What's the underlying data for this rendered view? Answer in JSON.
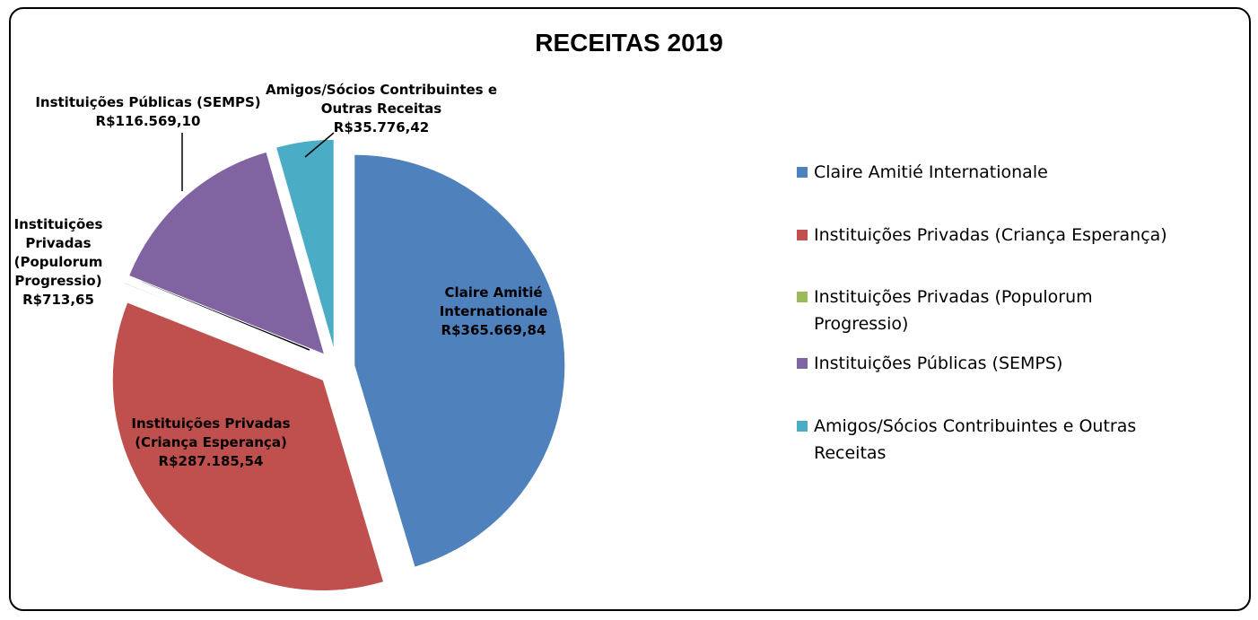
{
  "chart_data": {
    "type": "pie",
    "title": "RECEITAS 2019",
    "categories": [
      "Claire Amitié Internationale",
      "Instituições Privadas (Criança Esperança)",
      "Instituições Privadas (Populorum Progressio)",
      "Instituições Públicas (SEMPS)",
      "Amigos/Sócios Contribuintes e Outras Receitas"
    ],
    "values": [
      365669.84,
      287185.54,
      713.65,
      116569.1,
      35776.42
    ],
    "value_labels": [
      "R$365.669,84",
      "R$287.185,54",
      "R$713,65",
      "R$116.569,10",
      "R$35.776,42"
    ],
    "colors": [
      "#4f81bd",
      "#c0504d",
      "#9bbb59",
      "#8064a2",
      "#4bacc6"
    ],
    "legend": "right"
  }
}
